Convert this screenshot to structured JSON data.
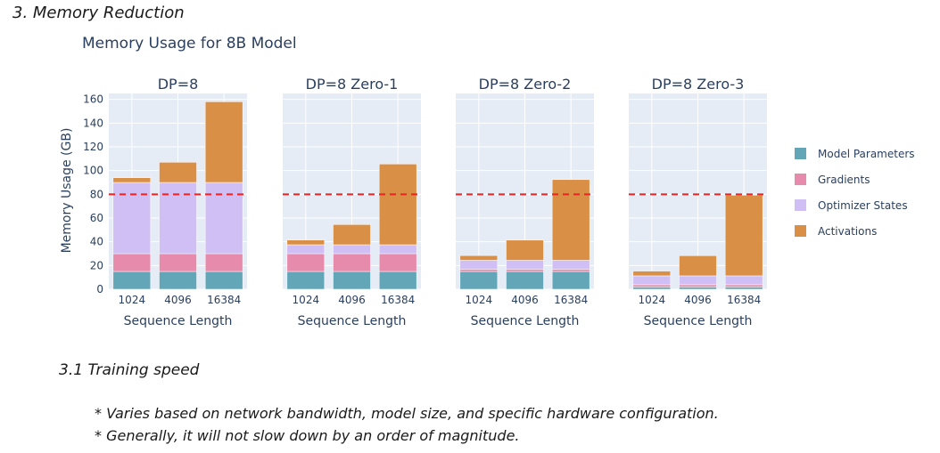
{
  "section_heading": "3. Memory Reduction",
  "subsection_heading": "3.1 Training speed",
  "bullets": [
    "* Varies based on network bandwidth, model size, and specific hardware configuration.",
    "* Generally, it will not slow down by an order of magnitude."
  ],
  "chart_data": {
    "type": "bar",
    "stacked": true,
    "title": "Memory Usage for 8B Model",
    "ylabel": "Memory Usage (GB)",
    "ylim": [
      0,
      165
    ],
    "yticks": [
      0,
      20,
      40,
      60,
      80,
      100,
      120,
      140,
      160
    ],
    "reference_line": {
      "y": 80,
      "style": "dashed",
      "color": "#ee2222"
    },
    "legend_placement": "right",
    "series": [
      {
        "name": "Model Parameters",
        "color": "#63a6b8"
      },
      {
        "name": "Gradients",
        "color": "#e68bab"
      },
      {
        "name": "Optimizer States",
        "color": "#d0bff4"
      },
      {
        "name": "Activations",
        "color": "#d98f45"
      }
    ],
    "subplots": [
      {
        "title": "DP=8",
        "xlabel": "Sequence Length",
        "categories": [
          "1024",
          "4096",
          "16384"
        ],
        "stacks": [
          [
            15,
            15,
            60,
            4
          ],
          [
            15,
            15,
            60,
            17
          ],
          [
            15,
            15,
            60,
            68
          ]
        ]
      },
      {
        "title": "DP=8 Zero-1",
        "xlabel": "Sequence Length",
        "categories": [
          "1024",
          "4096",
          "16384"
        ],
        "stacks": [
          [
            15,
            15,
            7.5,
            4
          ],
          [
            15,
            15,
            7.5,
            17
          ],
          [
            15,
            15,
            7.5,
            68
          ]
        ]
      },
      {
        "title": "DP=8 Zero-2",
        "xlabel": "Sequence Length",
        "categories": [
          "1024",
          "4096",
          "16384"
        ],
        "stacks": [
          [
            15,
            1.9,
            7.5,
            4
          ],
          [
            15,
            1.9,
            7.5,
            17
          ],
          [
            15,
            1.9,
            7.5,
            68
          ]
        ]
      },
      {
        "title": "DP=8 Zero-3",
        "xlabel": "Sequence Length",
        "categories": [
          "1024",
          "4096",
          "16384"
        ],
        "stacks": [
          [
            1.9,
            1.9,
            7.5,
            4
          ],
          [
            1.9,
            1.9,
            7.5,
            17
          ],
          [
            1.9,
            1.9,
            7.5,
            68
          ]
        ]
      }
    ]
  }
}
